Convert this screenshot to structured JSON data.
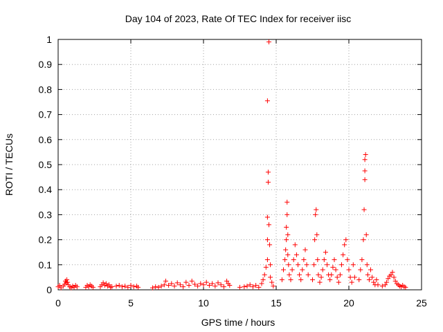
{
  "chart_data": {
    "type": "scatter",
    "title": "Day 104 of 2023, Rate Of TEC Index for receiver iisc",
    "xlabel": "GPS time / hours",
    "ylabel": "ROTI / TECUs",
    "xlim": [
      0,
      25
    ],
    "ylim": [
      0,
      1
    ],
    "x_ticks": [
      "0",
      "5",
      "10",
      "15",
      "20",
      "25"
    ],
    "y_ticks": [
      "0",
      "0.1",
      "0.2",
      "0.3",
      "0.4",
      "0.5",
      "0.6",
      "0.7",
      "0.8",
      "0.9",
      "1"
    ],
    "x_tick_values": [
      0,
      5,
      10,
      15,
      20,
      25
    ],
    "y_tick_values": [
      0,
      0.1,
      0.2,
      0.3,
      0.4,
      0.5,
      0.6,
      0.7,
      0.8,
      0.9,
      1
    ],
    "grid": true,
    "legend": "none",
    "marker": "+",
    "marker_color": "#ff0000",
    "points": [
      [
        0.0,
        0.012
      ],
      [
        0.1,
        0.018
      ],
      [
        0.2,
        0.008
      ],
      [
        0.35,
        0.015
      ],
      [
        0.45,
        0.022
      ],
      [
        0.5,
        0.035
      ],
      [
        0.55,
        0.028
      ],
      [
        0.6,
        0.04
      ],
      [
        0.65,
        0.03
      ],
      [
        0.7,
        0.02
      ],
      [
        0.8,
        0.012
      ],
      [
        0.9,
        0.008
      ],
      [
        1.0,
        0.015
      ],
      [
        1.1,
        0.01
      ],
      [
        1.2,
        0.018
      ],
      [
        1.3,
        0.012
      ],
      [
        1.9,
        0.01
      ],
      [
        2.0,
        0.018
      ],
      [
        2.1,
        0.012
      ],
      [
        2.2,
        0.02
      ],
      [
        2.3,
        0.015
      ],
      [
        2.4,
        0.01
      ],
      [
        2.9,
        0.012
      ],
      [
        3.0,
        0.02
      ],
      [
        3.1,
        0.028
      ],
      [
        3.2,
        0.018
      ],
      [
        3.3,
        0.025
      ],
      [
        3.4,
        0.015
      ],
      [
        3.5,
        0.02
      ],
      [
        3.6,
        0.01
      ],
      [
        3.7,
        0.012
      ],
      [
        4.0,
        0.015
      ],
      [
        4.2,
        0.018
      ],
      [
        4.4,
        0.012
      ],
      [
        4.6,
        0.015
      ],
      [
        4.8,
        0.01
      ],
      [
        5.0,
        0.018
      ],
      [
        5.2,
        0.012
      ],
      [
        5.4,
        0.015
      ],
      [
        5.5,
        0.01
      ],
      [
        6.5,
        0.008
      ],
      [
        6.7,
        0.012
      ],
      [
        6.9,
        0.01
      ],
      [
        7.1,
        0.015
      ],
      [
        7.3,
        0.02
      ],
      [
        7.4,
        0.035
      ],
      [
        7.6,
        0.018
      ],
      [
        7.8,
        0.025
      ],
      [
        8.0,
        0.015
      ],
      [
        8.2,
        0.028
      ],
      [
        8.4,
        0.02
      ],
      [
        8.6,
        0.012
      ],
      [
        8.8,
        0.03
      ],
      [
        9.0,
        0.018
      ],
      [
        9.2,
        0.035
      ],
      [
        9.4,
        0.022
      ],
      [
        9.6,
        0.015
      ],
      [
        9.8,
        0.025
      ],
      [
        10.0,
        0.02
      ],
      [
        10.2,
        0.03
      ],
      [
        10.4,
        0.018
      ],
      [
        10.6,
        0.025
      ],
      [
        10.8,
        0.015
      ],
      [
        11.0,
        0.028
      ],
      [
        11.2,
        0.02
      ],
      [
        11.4,
        0.012
      ],
      [
        11.6,
        0.035
      ],
      [
        11.7,
        0.025
      ],
      [
        11.8,
        0.018
      ],
      [
        12.5,
        0.01
      ],
      [
        12.8,
        0.012
      ],
      [
        13.0,
        0.015
      ],
      [
        13.2,
        0.02
      ],
      [
        13.4,
        0.012
      ],
      [
        13.6,
        0.018
      ],
      [
        13.8,
        0.01
      ],
      [
        14.0,
        0.025
      ],
      [
        14.1,
        0.04
      ],
      [
        14.2,
        0.06
      ],
      [
        14.3,
        0.09
      ],
      [
        14.4,
        0.12
      ],
      [
        14.4,
        0.2
      ],
      [
        14.4,
        0.29
      ],
      [
        14.45,
        0.43
      ],
      [
        14.45,
        0.47
      ],
      [
        14.4,
        0.755
      ],
      [
        14.5,
        0.99
      ],
      [
        14.5,
        0.26
      ],
      [
        14.55,
        0.18
      ],
      [
        14.6,
        0.1
      ],
      [
        14.6,
        0.05
      ],
      [
        14.7,
        0.03
      ],
      [
        14.8,
        0.015
      ],
      [
        15.4,
        0.04
      ],
      [
        15.5,
        0.08
      ],
      [
        15.6,
        0.12
      ],
      [
        15.65,
        0.16
      ],
      [
        15.7,
        0.2
      ],
      [
        15.7,
        0.25
      ],
      [
        15.75,
        0.3
      ],
      [
        15.75,
        0.35
      ],
      [
        15.8,
        0.22
      ],
      [
        15.8,
        0.14
      ],
      [
        15.85,
        0.1
      ],
      [
        15.9,
        0.06
      ],
      [
        16.0,
        0.04
      ],
      [
        16.1,
        0.08
      ],
      [
        16.2,
        0.12
      ],
      [
        16.3,
        0.18
      ],
      [
        16.4,
        0.14
      ],
      [
        16.5,
        0.1
      ],
      [
        16.6,
        0.06
      ],
      [
        16.7,
        0.04
      ],
      [
        16.8,
        0.08
      ],
      [
        16.9,
        0.12
      ],
      [
        17.0,
        0.16
      ],
      [
        17.1,
        0.1
      ],
      [
        17.2,
        0.06
      ],
      [
        17.5,
        0.04
      ],
      [
        17.6,
        0.1
      ],
      [
        17.65,
        0.2
      ],
      [
        17.7,
        0.3
      ],
      [
        17.75,
        0.32
      ],
      [
        17.8,
        0.22
      ],
      [
        17.85,
        0.12
      ],
      [
        17.9,
        0.06
      ],
      [
        18.0,
        0.03
      ],
      [
        18.1,
        0.05
      ],
      [
        18.2,
        0.08
      ],
      [
        18.3,
        0.12
      ],
      [
        18.4,
        0.15
      ],
      [
        18.5,
        0.1
      ],
      [
        18.6,
        0.06
      ],
      [
        18.7,
        0.04
      ],
      [
        18.8,
        0.06
      ],
      [
        18.9,
        0.09
      ],
      [
        19.0,
        0.12
      ],
      [
        19.1,
        0.08
      ],
      [
        19.2,
        0.05
      ],
      [
        19.3,
        0.03
      ],
      [
        19.4,
        0.06
      ],
      [
        19.5,
        0.1
      ],
      [
        19.6,
        0.14
      ],
      [
        19.7,
        0.18
      ],
      [
        19.8,
        0.2
      ],
      [
        19.9,
        0.12
      ],
      [
        20.0,
        0.08
      ],
      [
        20.1,
        0.05
      ],
      [
        20.2,
        0.03
      ],
      [
        20.3,
        0.1
      ],
      [
        20.4,
        0.05
      ],
      [
        20.7,
        0.04
      ],
      [
        20.8,
        0.08
      ],
      [
        20.9,
        0.12
      ],
      [
        21.0,
        0.2
      ],
      [
        21.05,
        0.32
      ],
      [
        21.1,
        0.44
      ],
      [
        21.1,
        0.475
      ],
      [
        21.1,
        0.52
      ],
      [
        21.15,
        0.54
      ],
      [
        21.2,
        0.22
      ],
      [
        21.25,
        0.1
      ],
      [
        21.3,
        0.06
      ],
      [
        21.4,
        0.04
      ],
      [
        21.5,
        0.08
      ],
      [
        21.6,
        0.05
      ],
      [
        21.7,
        0.03
      ],
      [
        21.8,
        0.02
      ],
      [
        21.9,
        0.04
      ],
      [
        22.0,
        0.02
      ],
      [
        22.3,
        0.015
      ],
      [
        22.5,
        0.02
      ],
      [
        22.6,
        0.03
      ],
      [
        22.7,
        0.045
      ],
      [
        22.8,
        0.055
      ],
      [
        22.9,
        0.06
      ],
      [
        23.0,
        0.07
      ],
      [
        23.1,
        0.05
      ],
      [
        23.2,
        0.035
      ],
      [
        23.3,
        0.025
      ],
      [
        23.4,
        0.02
      ],
      [
        23.5,
        0.015
      ],
      [
        23.6,
        0.012
      ],
      [
        23.7,
        0.018
      ],
      [
        23.8,
        0.012
      ],
      [
        23.9,
        0.01
      ]
    ]
  }
}
